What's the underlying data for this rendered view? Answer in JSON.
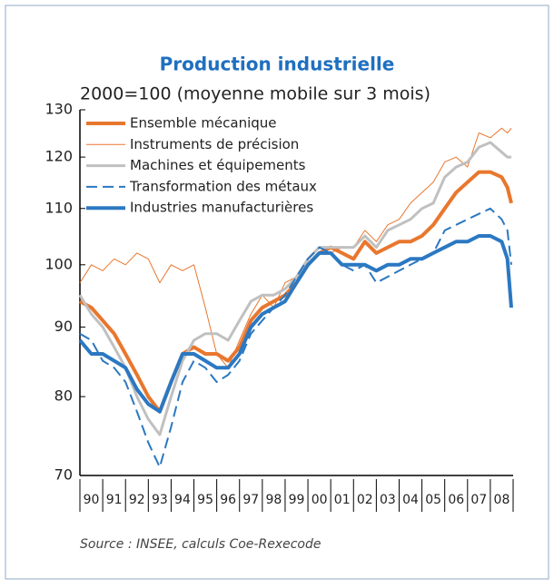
{
  "chart_data": {
    "type": "line",
    "title": "Production industrielle",
    "subtitle": "2000=100 (moyenne mobile sur 3 mois)",
    "source": "Source : INSEE, calculs Coe-Rexecode",
    "log_scale": true,
    "ylim": [
      70,
      130
    ],
    "yticks": [
      70,
      80,
      90,
      100,
      110,
      120,
      130
    ],
    "xlim": [
      1990,
      2009
    ],
    "xticks": [
      {
        "value": 1990.5,
        "label": "90"
      },
      {
        "value": 1991.5,
        "label": "91"
      },
      {
        "value": 1992.5,
        "label": "92"
      },
      {
        "value": 1993.5,
        "label": "93"
      },
      {
        "value": 1994.5,
        "label": "94"
      },
      {
        "value": 1995.5,
        "label": "95"
      },
      {
        "value": 1996.5,
        "label": "96"
      },
      {
        "value": 1997.5,
        "label": "97"
      },
      {
        "value": 1998.5,
        "label": "98"
      },
      {
        "value": 1999.5,
        "label": "99"
      },
      {
        "value": 2000.5,
        "label": "00"
      },
      {
        "value": 2001.5,
        "label": "01"
      },
      {
        "value": 2002.5,
        "label": "02"
      },
      {
        "value": 2003.5,
        "label": "03"
      },
      {
        "value": 2004.5,
        "label": "04"
      },
      {
        "value": 2005.5,
        "label": "05"
      },
      {
        "value": 2006.5,
        "label": "06"
      },
      {
        "value": 2007.5,
        "label": "07"
      },
      {
        "value": 2008.5,
        "label": "08"
      }
    ],
    "x": [
      1990,
      1990.5,
      1991,
      1991.5,
      1992,
      1992.5,
      1993,
      1993.5,
      1994,
      1994.5,
      1995,
      1995.5,
      1996,
      1996.5,
      1997,
      1997.5,
      1998,
      1998.5,
      1999,
      1999.5,
      2000,
      2000.5,
      2001,
      2001.5,
      2002,
      2002.5,
      2003,
      2003.5,
      2004,
      2004.5,
      2005,
      2005.5,
      2006,
      2006.5,
      2007,
      2007.5,
      2008,
      2008.5,
      2008.75,
      2008.92
    ],
    "series": [
      {
        "name": "Ensemble mécanique",
        "color": "#e8772e",
        "width": 4,
        "dashed": false,
        "values": [
          94,
          93,
          91,
          89,
          86,
          83,
          80,
          78,
          82,
          86,
          87,
          86,
          86,
          85,
          87,
          91,
          93,
          94,
          95,
          97,
          100,
          102,
          103,
          102,
          101,
          104,
          102,
          103,
          104,
          104,
          105,
          107,
          110,
          113,
          115,
          117,
          117,
          116,
          114,
          111
        ]
      },
      {
        "name": "Instruments de précision",
        "color": "#e8772e",
        "width": 1,
        "dashed": false,
        "values": [
          97,
          100,
          99,
          101,
          100,
          102,
          101,
          97,
          100,
          99,
          100,
          93,
          86,
          84,
          88,
          92,
          95,
          93,
          97,
          98,
          101,
          103,
          102,
          103,
          103,
          106,
          104,
          107,
          108,
          111,
          113,
          115,
          119,
          120,
          118,
          125,
          124,
          126,
          125,
          126
        ]
      },
      {
        "name": "Machines et équipements",
        "color": "#c0c0c0",
        "width": 3,
        "dashed": false,
        "values": [
          95,
          92,
          90,
          87,
          84,
          80,
          77,
          75,
          80,
          85,
          88,
          89,
          89,
          88,
          91,
          94,
          95,
          95,
          96,
          98,
          101,
          103,
          103,
          103,
          103,
          105,
          103,
          106,
          107,
          108,
          110,
          111,
          116,
          118,
          119,
          122,
          123,
          121,
          120,
          120
        ]
      },
      {
        "name": "Transformation des métaux",
        "color": "#2b78c2",
        "width": 2,
        "dashed": true,
        "values": [
          89,
          88,
          85,
          84,
          82,
          78,
          74,
          71,
          76,
          82,
          85,
          84,
          82,
          83,
          85,
          89,
          91,
          93,
          95,
          98,
          101,
          103,
          102,
          100,
          99,
          100,
          97,
          98,
          99,
          100,
          101,
          102,
          106,
          107,
          108,
          109,
          110,
          108,
          106,
          100
        ]
      },
      {
        "name": "Industries manufacturières",
        "color": "#2b78c2",
        "width": 4,
        "dashed": false,
        "values": [
          88,
          86,
          86,
          85,
          84,
          81,
          79,
          78,
          82,
          86,
          86,
          85,
          84,
          84,
          86,
          90,
          92,
          93,
          94,
          97,
          100,
          102,
          102,
          100,
          100,
          100,
          99,
          100,
          100,
          101,
          101,
          102,
          103,
          104,
          104,
          105,
          105,
          104,
          101,
          93
        ]
      }
    ]
  }
}
